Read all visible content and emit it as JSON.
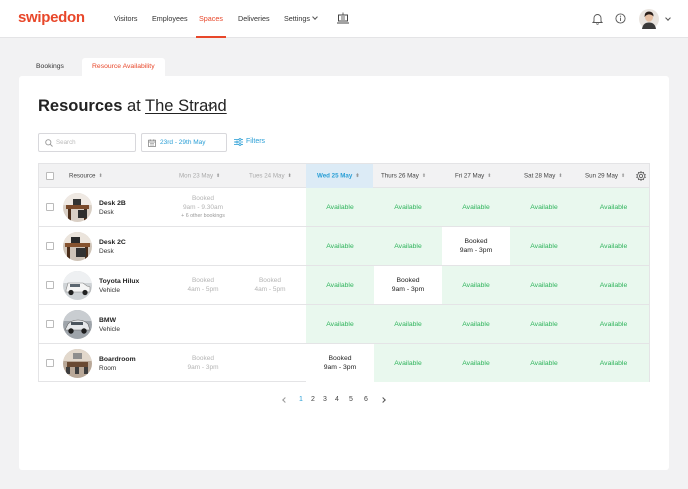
{
  "brand": {
    "name": "swipedon",
    "accent": "#e8472a",
    "link": "#2a9fd6",
    "available_bg": "#e9f8ee",
    "available_text": "#2db35a"
  },
  "nav": {
    "items": [
      {
        "label": "Visitors"
      },
      {
        "label": "Employees"
      },
      {
        "label": "Spaces"
      },
      {
        "label": "Deliveries"
      },
      {
        "label": "Settings"
      }
    ],
    "icons": [
      "sign-in-kiosk-icon",
      "bell-icon",
      "info-icon",
      "avatar",
      "chevron-down-icon"
    ]
  },
  "tabs": [
    {
      "label": "Bookings"
    },
    {
      "label": "Resource Availability"
    }
  ],
  "heading": {
    "bold": "Resources",
    "at": "at",
    "location": "The Strand"
  },
  "search": {
    "placeholder": "Search"
  },
  "date_range": {
    "label": "23rd - 29th May"
  },
  "filters": {
    "label": "Filters"
  },
  "table": {
    "columns": [
      {
        "label": "Resource"
      },
      {
        "label": "Mon 23 May"
      },
      {
        "label": "Tues 24 May"
      },
      {
        "label": "Wed 25 May"
      },
      {
        "label": "Thurs 26 May"
      },
      {
        "label": "Fri 27 May"
      },
      {
        "label": "Sat 28 May"
      },
      {
        "label": "Sun 29 May"
      }
    ],
    "available_label": "Available",
    "booked_label": "Booked",
    "rows": [
      {
        "name": "Desk 2B",
        "type": "Desk",
        "mon": {
          "label": "Booked",
          "time": "9am - 9.30am",
          "more": "+ 6 other bookings"
        }
      },
      {
        "name": "Desk 2C",
        "type": "Desk",
        "fri": {
          "label": "Booked",
          "time": "9am - 3pm"
        }
      },
      {
        "name": "Toyota Hilux",
        "type": "Vehicle",
        "mon": {
          "label": "Booked",
          "time": "4am - 5pm"
        },
        "tue": {
          "label": "Booked",
          "time": "4am - 5pm"
        },
        "thu": {
          "label": "Booked",
          "time": "9am - 3pm"
        }
      },
      {
        "name": "BMW",
        "type": "Vehicle"
      },
      {
        "name": "Boardroom",
        "type": "Room",
        "mon": {
          "label": "Booked",
          "time": "9am - 3pm"
        },
        "wed": {
          "label": "Booked",
          "time": "9am - 3pm"
        }
      }
    ]
  },
  "pagination": {
    "pages": [
      "1",
      "2",
      "3",
      "4",
      "5",
      "6"
    ],
    "current": "1"
  }
}
